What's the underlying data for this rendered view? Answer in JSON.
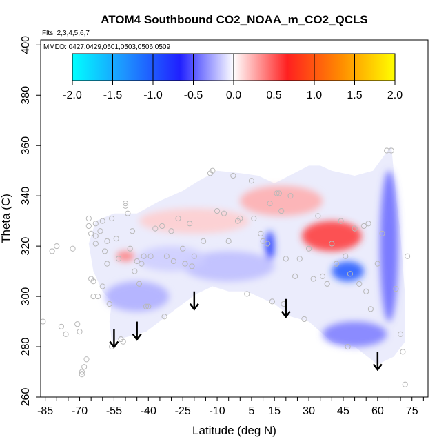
{
  "chart_data": {
    "type": "heatmap",
    "title": "ATOM4 Southbound CO2_NOAA_m_CO2_QCLS",
    "flights_label": "Flts: 2,3,4,5,6,7",
    "dates_label": "MMDD: 0427,0429,0501,0503,0506,0509",
    "xlabel": "Latitude (deg N)",
    "ylabel": "Theta (C)",
    "xlim": [
      -87,
      82
    ],
    "ylim": [
      260,
      402
    ],
    "x_ticks": [
      -85,
      -70,
      -55,
      -40,
      -25,
      -10,
      5,
      15,
      30,
      45,
      60,
      75
    ],
    "x_minor_ticks": [
      -85,
      -80,
      -75,
      -70,
      -65,
      -60,
      -55,
      -50,
      -45,
      -40,
      -35,
      -30,
      -25,
      -20,
      -15,
      -10,
      -5,
      0,
      5,
      10,
      15,
      20,
      25,
      30,
      35,
      40,
      45,
      50,
      55,
      60,
      65,
      70,
      75,
      80
    ],
    "y_ticks": [
      260,
      280,
      300,
      320,
      340,
      360,
      380,
      400
    ],
    "colorbar": {
      "min": -2.0,
      "max": 2.0,
      "ticks": [
        "-2.0",
        "-1.5",
        "-1.0",
        "-0.5",
        "0.0",
        "0.5",
        "1.0",
        "1.5",
        "2.0"
      ],
      "stops": [
        "#00ffff",
        "#1e90ff",
        "#2020ff",
        "#ffffff",
        "#ff2020",
        "#ff8c00",
        "#ffff00"
      ]
    },
    "floor_boundary": [
      [
        -56,
        298
      ],
      [
        -57,
        290
      ],
      [
        -56,
        282
      ],
      [
        -53,
        283
      ],
      [
        -41,
        286
      ],
      [
        -28,
        295
      ],
      [
        -19,
        301
      ],
      [
        -12,
        304
      ],
      [
        -5,
        302
      ],
      [
        3,
        302
      ],
      [
        15,
        297
      ],
      [
        22,
        292
      ],
      [
        30,
        290
      ],
      [
        40,
        282
      ],
      [
        50,
        280
      ],
      [
        60,
        273
      ],
      [
        67,
        276
      ],
      [
        72,
        282
      ]
    ],
    "ceiling_boundary": [
      [
        72,
        300
      ],
      [
        70,
        325
      ],
      [
        68,
        340
      ],
      [
        66,
        360
      ],
      [
        58,
        350
      ],
      [
        50,
        348
      ],
      [
        40,
        350
      ],
      [
        35,
        352
      ],
      [
        30,
        352
      ],
      [
        15,
        345
      ],
      [
        8,
        348
      ],
      [
        0,
        349
      ],
      [
        -10,
        350
      ],
      [
        -18,
        346
      ],
      [
        -25,
        342
      ],
      [
        -35,
        338
      ],
      [
        -45,
        333
      ],
      [
        -55,
        333
      ],
      [
        -63,
        330
      ],
      [
        -66,
        321
      ],
      [
        -64,
        310
      ],
      [
        -60,
        302
      ],
      [
        -56,
        298
      ]
    ],
    "anomaly_blobs": [
      {
        "lat": 47,
        "theta": 310,
        "value": -1.0,
        "rx": 7,
        "ry": 4
      },
      {
        "lat": 40,
        "theta": 324,
        "value": 0.6,
        "rx": 13,
        "ry": 6
      },
      {
        "lat": 18,
        "theta": 338,
        "value": 0.25,
        "rx": 18,
        "ry": 6
      },
      {
        "lat": -50,
        "theta": 316,
        "value": 0.4,
        "rx": 4,
        "ry": 2
      },
      {
        "lat": -20,
        "theta": 330,
        "value": 0.15,
        "rx": 24,
        "ry": 5
      },
      {
        "lat": 13,
        "theta": 320,
        "value": -0.8,
        "rx": 2,
        "ry": 6
      },
      {
        "lat": 65,
        "theta": 320,
        "value": -0.45,
        "rx": 4,
        "ry": 30
      },
      {
        "lat": 50,
        "theta": 285,
        "value": -0.4,
        "rx": 14,
        "ry": 5
      },
      {
        "lat": -45,
        "theta": 300,
        "value": -0.25,
        "rx": 14,
        "ry": 6
      },
      {
        "lat": -5,
        "theta": 312,
        "value": -0.2,
        "rx": 20,
        "ry": 6
      },
      {
        "lat": -30,
        "theta": 315,
        "value": -0.15,
        "rx": 15,
        "ry": 5
      }
    ],
    "sample_points": [
      [
        -86,
        290
      ],
      [
        -82,
        318
      ],
      [
        -80,
        320
      ],
      [
        -78,
        288
      ],
      [
        -76,
        285
      ],
      [
        -73,
        319
      ],
      [
        -71,
        289
      ],
      [
        -70,
        286
      ],
      [
        -69,
        270
      ],
      [
        -69,
        269
      ],
      [
        -68,
        272
      ],
      [
        -67,
        275
      ],
      [
        -66,
        331
      ],
      [
        -66,
        328
      ],
      [
        -65,
        325
      ],
      [
        -65,
        307
      ],
      [
        -64,
        306
      ],
      [
        -64,
        300
      ],
      [
        -63,
        329
      ],
      [
        -63,
        324
      ],
      [
        -63,
        321
      ],
      [
        -62,
        300
      ],
      [
        -61,
        326
      ],
      [
        -60,
        330
      ],
      [
        -60,
        304
      ],
      [
        -59,
        318
      ],
      [
        -58,
        322
      ],
      [
        -58,
        313
      ],
      [
        -57,
        297
      ],
      [
        -56,
        331
      ],
      [
        -56,
        280
      ],
      [
        -54,
        323
      ],
      [
        -53,
        315
      ],
      [
        -52,
        283
      ],
      [
        -51,
        282
      ],
      [
        -50,
        337
      ],
      [
        -50,
        336
      ],
      [
        -49,
        333
      ],
      [
        -48,
        319
      ],
      [
        -47,
        326
      ],
      [
        -46,
        310
      ],
      [
        -45,
        314
      ],
      [
        -44,
        305
      ],
      [
        -43,
        313
      ],
      [
        -42,
        316
      ],
      [
        -41,
        296
      ],
      [
        -40,
        296
      ],
      [
        -39,
        316
      ],
      [
        -37,
        327
      ],
      [
        -34,
        328
      ],
      [
        -33,
        292
      ],
      [
        -32,
        316
      ],
      [
        -30,
        326
      ],
      [
        -29,
        314
      ],
      [
        -27,
        331
      ],
      [
        -25,
        319
      ],
      [
        -24,
        313
      ],
      [
        -22,
        329
      ],
      [
        -21,
        312
      ],
      [
        -20,
        316
      ],
      [
        -16,
        322
      ],
      [
        -13,
        349
      ],
      [
        -12,
        350
      ],
      [
        -10,
        334
      ],
      [
        -7,
        333
      ],
      [
        -5,
        322
      ],
      [
        -3,
        348
      ],
      [
        -1,
        330
      ],
      [
        0,
        331
      ],
      [
        3,
        301
      ],
      [
        5,
        346
      ],
      [
        6,
        331
      ],
      [
        9,
        325
      ],
      [
        10,
        322
      ],
      [
        12,
        321
      ],
      [
        13,
        337
      ],
      [
        14,
        298
      ],
      [
        16,
        341
      ],
      [
        17,
        341
      ],
      [
        18,
        334
      ],
      [
        19,
        297
      ],
      [
        20,
        315
      ],
      [
        22,
        340
      ],
      [
        24,
        308
      ],
      [
        26,
        315
      ],
      [
        28,
        291
      ],
      [
        30,
        319
      ],
      [
        32,
        307
      ],
      [
        34,
        332
      ],
      [
        36,
        308
      ],
      [
        38,
        305
      ],
      [
        40,
        321
      ],
      [
        42,
        313
      ],
      [
        44,
        330
      ],
      [
        46,
        316
      ],
      [
        47,
        280
      ],
      [
        48,
        309
      ],
      [
        50,
        327
      ],
      [
        52,
        305
      ],
      [
        54,
        328
      ],
      [
        55,
        302
      ],
      [
        56,
        329
      ],
      [
        57,
        295
      ],
      [
        60,
        313
      ],
      [
        62,
        325
      ],
      [
        64,
        358
      ],
      [
        66,
        358
      ],
      [
        68,
        303
      ],
      [
        70,
        285
      ],
      [
        71,
        278
      ],
      [
        72,
        265
      ],
      [
        73,
        316
      ]
    ],
    "arrows": [
      [
        -55,
        287
      ],
      [
        -45,
        290
      ],
      [
        -20,
        302
      ],
      [
        20,
        299
      ],
      [
        60,
        278
      ]
    ]
  }
}
